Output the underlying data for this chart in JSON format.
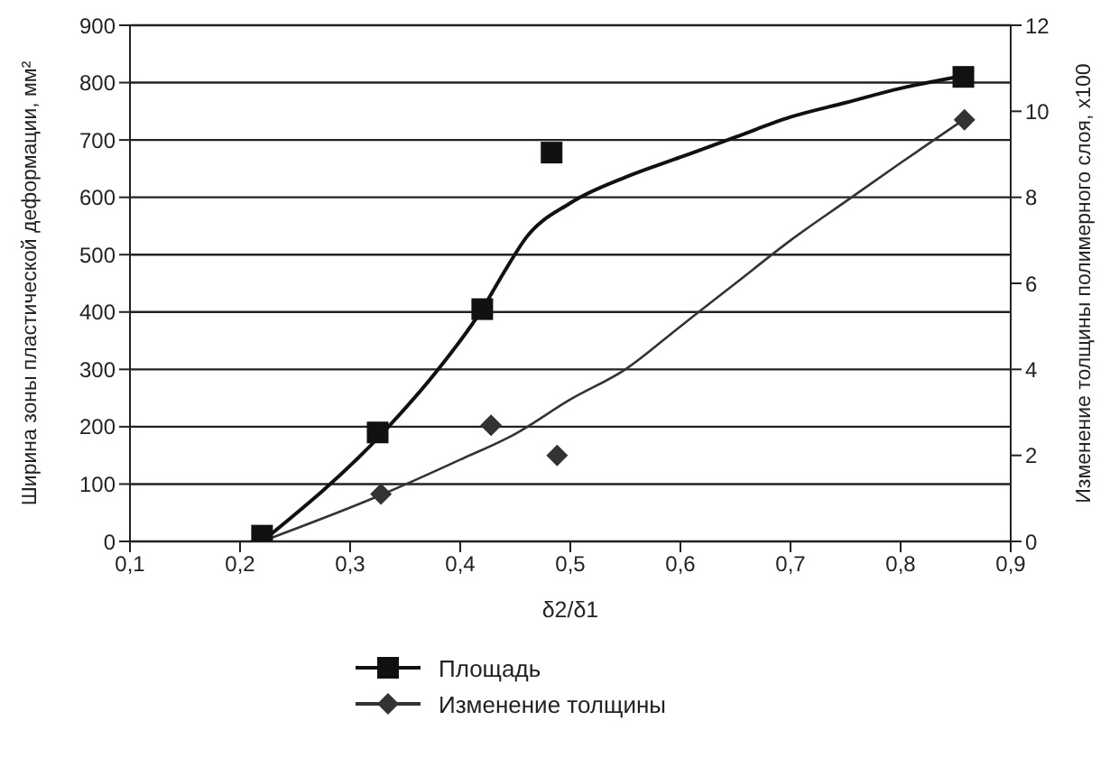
{
  "chart_data": {
    "type": "scatter",
    "xlabel": "δ2/δ1",
    "ylabel": "Ширина зоны пластической деформации, мм²",
    "y2label": "Изменение толщины полимерного слоя, x100",
    "xlim": [
      0.1,
      0.9
    ],
    "xticks": [
      {
        "value": 0.1,
        "label": "0,1"
      },
      {
        "value": 0.2,
        "label": "0,2"
      },
      {
        "value": 0.3,
        "label": "0,3"
      },
      {
        "value": 0.4,
        "label": "0,4"
      },
      {
        "value": 0.5,
        "label": "0,5"
      },
      {
        "value": 0.6,
        "label": "0,6"
      },
      {
        "value": 0.7,
        "label": "0,7"
      },
      {
        "value": 0.8,
        "label": "0,8"
      },
      {
        "value": 0.9,
        "label": "0,9"
      }
    ],
    "ylim": [
      0,
      900
    ],
    "yticks": [
      0,
      100,
      200,
      300,
      400,
      500,
      600,
      700,
      800,
      900
    ],
    "y2lim": [
      0,
      12
    ],
    "y2ticks": [
      0,
      2,
      4,
      6,
      8,
      10,
      12
    ],
    "grid": "y",
    "legend": "bottom",
    "series": [
      {
        "name": "Площадь",
        "marker": "square",
        "color": "#111111",
        "x": [
          0.22,
          0.325,
          0.42,
          0.483,
          0.857
        ],
        "values": [
          10,
          190,
          405,
          678,
          810
        ]
      },
      {
        "type": "line",
        "marker": "none",
        "color": "#111111",
        "x": [
          0.22,
          0.33,
          0.38,
          0.42,
          0.44,
          0.46,
          0.5,
          0.55,
          0.6,
          0.65,
          0.7,
          0.75,
          0.8,
          0.857
        ],
        "values": [
          0,
          190,
          300,
          405,
          470,
          530,
          590,
          635,
          670,
          705,
          740,
          765,
          790,
          812
        ]
      },
      {
        "name": "Изменение толщины",
        "marker": "diamond",
        "axis": "y2",
        "color": "#333333",
        "x": [
          0.328,
          0.428,
          0.488,
          0.858
        ],
        "values": [
          1.1,
          2.7,
          2.0,
          9.8
        ]
      },
      {
        "type": "line",
        "marker": "none",
        "axis": "y2",
        "color": "#333333",
        "x": [
          0.22,
          0.33,
          0.4,
          0.45,
          0.5,
          0.55,
          0.6,
          0.65,
          0.7,
          0.75,
          0.8,
          0.857
        ],
        "values": [
          0,
          1.1,
          1.9,
          2.5,
          3.3,
          4.0,
          5.0,
          6.0,
          7.0,
          7.9,
          8.8,
          9.8
        ]
      }
    ]
  }
}
